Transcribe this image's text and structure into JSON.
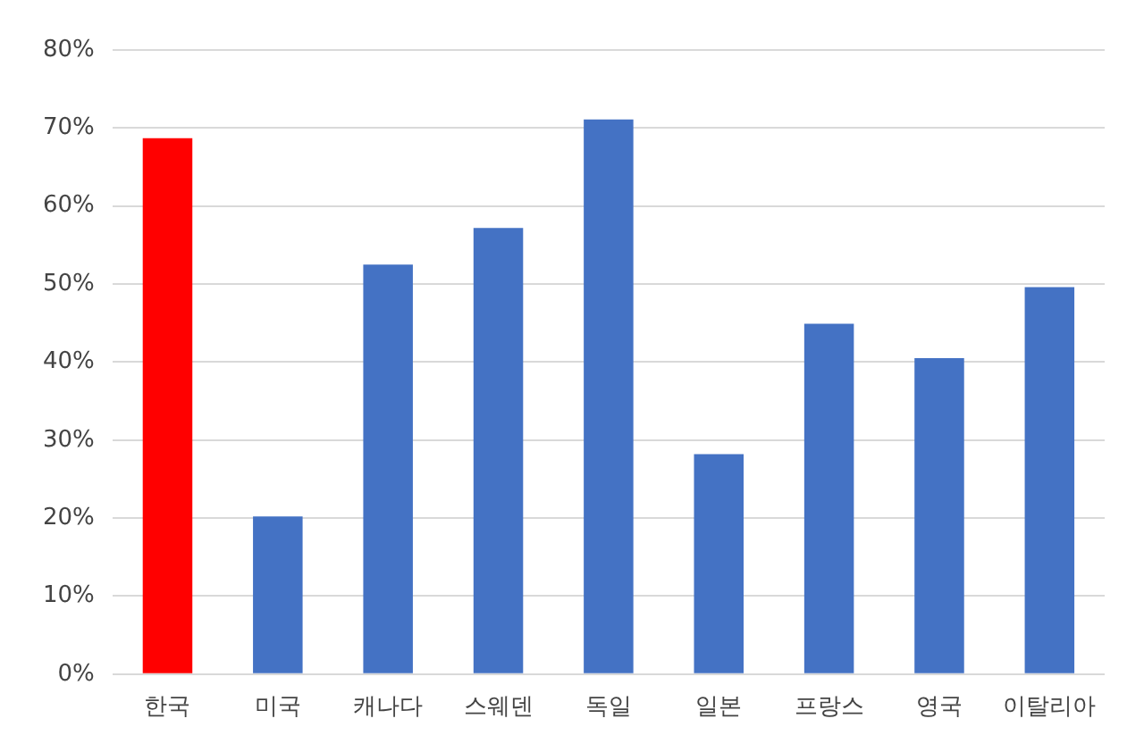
{
  "chart_data": {
    "type": "bar",
    "categories": [
      "한국",
      "미국",
      "캐나다",
      "스웨덴",
      "독일",
      "일본",
      "프랑스",
      "영국",
      "이탈리아"
    ],
    "values": [
      68.7,
      20.2,
      52.5,
      57.2,
      71.1,
      28.2,
      44.9,
      40.5,
      49.6
    ],
    "colors": [
      "#ff0000",
      "#4472c4",
      "#4472c4",
      "#4472c4",
      "#4472c4",
      "#4472c4",
      "#4472c4",
      "#4472c4",
      "#4472c4"
    ],
    "ylim": [
      0,
      80
    ],
    "yticks": [
      {
        "value": 0,
        "label": "0%"
      },
      {
        "value": 10,
        "label": "10%"
      },
      {
        "value": 20,
        "label": "20%"
      },
      {
        "value": 30,
        "label": "30%"
      },
      {
        "value": 40,
        "label": "40%"
      },
      {
        "value": 50,
        "label": "50%"
      },
      {
        "value": 60,
        "label": "60%"
      },
      {
        "value": 70,
        "label": "70%"
      },
      {
        "value": 80,
        "label": "80%"
      }
    ],
    "grid": "y"
  }
}
